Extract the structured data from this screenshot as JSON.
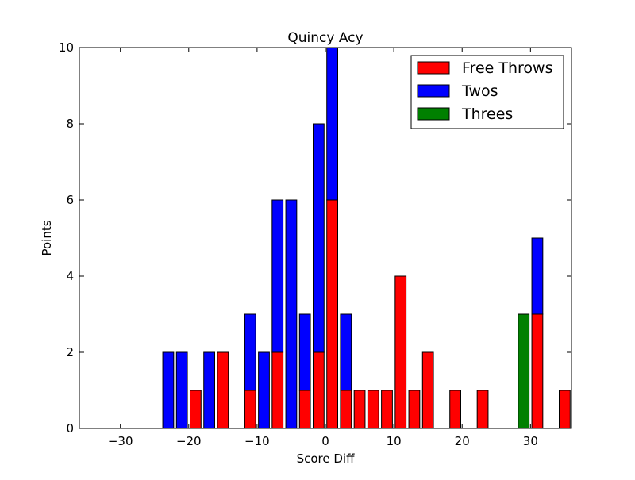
{
  "chart_data": {
    "type": "bar",
    "stacked": true,
    "title": "Quincy Acy",
    "xlabel": "Score Diff",
    "ylabel": "Points",
    "xlim": [
      -36,
      36
    ],
    "ylim": [
      0,
      10
    ],
    "xticks": [
      -30,
      -20,
      -10,
      0,
      10,
      20,
      30
    ],
    "xtick_labels": [
      "−30",
      "−20",
      "−10",
      "0",
      "10",
      "20",
      "30"
    ],
    "yticks": [
      0,
      2,
      4,
      6,
      8,
      10
    ],
    "ytick_labels": [
      "0",
      "2",
      "4",
      "6",
      "8",
      "10"
    ],
    "bar_width": 1.6,
    "grid": false,
    "legend_position": "upper right",
    "x": [
      -35,
      -33,
      -31,
      -29,
      -27,
      -25,
      -23,
      -21,
      -19,
      -17,
      -15,
      -13,
      -11,
      -9,
      -7,
      -5,
      -3,
      -1,
      1,
      3,
      5,
      7,
      9,
      11,
      13,
      15,
      17,
      19,
      21,
      23,
      25,
      27,
      29,
      31,
      33,
      35
    ],
    "series": [
      {
        "name": "Free Throws",
        "color": "#ff0000",
        "values": [
          0,
          0,
          0,
          0,
          0,
          0,
          0,
          0,
          1,
          0,
          2,
          0,
          1,
          0,
          2,
          0,
          1,
          2,
          6,
          1,
          1,
          1,
          1,
          4,
          1,
          2,
          0,
          1,
          0,
          1,
          0,
          0,
          0,
          3,
          0,
          1
        ]
      },
      {
        "name": "Twos",
        "color": "#0000ff",
        "values": [
          0,
          0,
          0,
          0,
          0,
          0,
          2,
          2,
          0,
          2,
          0,
          0,
          2,
          2,
          4,
          6,
          2,
          6,
          4,
          2,
          0,
          0,
          0,
          0,
          0,
          0,
          0,
          0,
          0,
          0,
          0,
          0,
          0,
          2,
          0,
          0
        ]
      },
      {
        "name": "Threes",
        "color": "#008000",
        "values": [
          0,
          0,
          0,
          0,
          0,
          0,
          0,
          0,
          0,
          0,
          0,
          0,
          0,
          0,
          0,
          0,
          0,
          0,
          0,
          0,
          0,
          0,
          0,
          0,
          0,
          0,
          0,
          0,
          0,
          0,
          0,
          0,
          3,
          0,
          0,
          0
        ]
      }
    ]
  }
}
